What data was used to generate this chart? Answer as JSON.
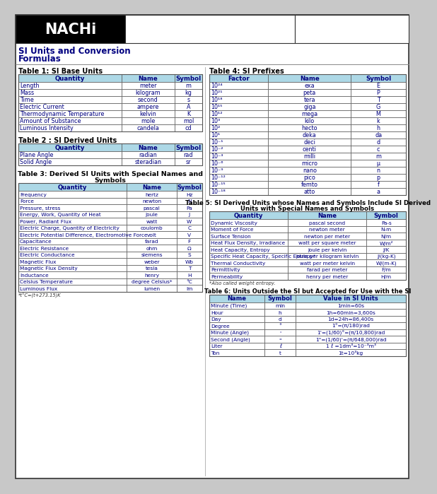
{
  "title_line1": "SI Units and Conversion",
  "title_line2": "Formulas",
  "nachi_text": "NACHi",
  "header_bg": "#000000",
  "table_header_bg": "#add8e6",
  "text_dark_blue": "#00008B",
  "text_black": "#000000",
  "border_color": "#555555",
  "page_border": "#888888",
  "table1_title": "Table 1: SI Base Units",
  "table1_headers": [
    "Quantity",
    "Name",
    "Symbol"
  ],
  "table1_rows": [
    [
      "Length",
      "meter",
      "m"
    ],
    [
      "Mass",
      "kilogram",
      "kg"
    ],
    [
      "Time",
      "second",
      "s"
    ],
    [
      "Electric Current",
      "ampere",
      "A"
    ],
    [
      "Thermodynamic Temperature",
      "kelvin",
      "K"
    ],
    [
      "Amount of Substance",
      "mole",
      "mol"
    ],
    [
      "Luminous Intensity",
      "candela",
      "cd"
    ]
  ],
  "table2_title": "Table 2 : SI Derived Units",
  "table2_headers": [
    "Quantity",
    "Name",
    "Symbol"
  ],
  "table2_rows": [
    [
      "Plane Angle",
      "radian",
      "rad"
    ],
    [
      "Solid Angle",
      "steradian",
      "sr"
    ]
  ],
  "table3_title_line1": "Table 3: Derived SI Units with Special Names and",
  "table3_title_line2": "Symbols",
  "table3_headers": [
    "Quantity",
    "Name",
    "Symbol"
  ],
  "table3_rows": [
    [
      "Frequency",
      "hertz",
      "Hz"
    ],
    [
      "Force",
      "newton",
      "N"
    ],
    [
      "Pressure, stress",
      "pascal",
      "Pa"
    ],
    [
      "Energy, Work, Quantity of Heat",
      "joule",
      "J"
    ],
    [
      "Power, Radiant Flux",
      "watt",
      "W"
    ],
    [
      "Electric Charge, Quantity of Electricity",
      "coulomb",
      "C"
    ],
    [
      "Electric Potential Difference, Electromotive Force",
      "volt",
      "V"
    ],
    [
      "Capacitance",
      "farad",
      "F"
    ],
    [
      "Electric Resistance",
      "ohm",
      "Ω"
    ],
    [
      "Electric Conductance",
      "siemens",
      "S"
    ],
    [
      "Magnetic Flux",
      "weber",
      "Wb"
    ],
    [
      "Magnetic Flux Density",
      "tesla",
      "T"
    ],
    [
      "Inductance",
      "henry",
      "H"
    ],
    [
      "Celsius Temperature",
      "degree Celsius*",
      "°C"
    ],
    [
      "Luminous Flux",
      "lumen",
      "lm"
    ]
  ],
  "table3_footnote": "*t°C=(t+273.15)K",
  "table4_title": "Table 4: SI Prefixes",
  "table4_headers": [
    "Factor",
    "Name",
    "Symbol"
  ],
  "table4_rows": [
    [
      "10²⁴",
      "exa",
      "E"
    ],
    [
      "10²¹",
      "peta",
      "P"
    ],
    [
      "10¹⁸",
      "tera",
      "T"
    ],
    [
      "10¹⁵",
      "giga",
      "G"
    ],
    [
      "10¹²",
      "mega",
      "M"
    ],
    [
      "10³",
      "kilo",
      "k"
    ],
    [
      "10²",
      "hecto",
      "h"
    ],
    [
      "10¹",
      "deka",
      "da"
    ],
    [
      "10⁻¹",
      "deci",
      "d"
    ],
    [
      "10⁻²",
      "centi",
      "c"
    ],
    [
      "10⁻³",
      "milli",
      "m"
    ],
    [
      "10⁻⁶",
      "micro",
      "μ"
    ],
    [
      "10⁻⁹",
      "nano",
      "n"
    ],
    [
      "10⁻¹²",
      "pico",
      "p"
    ],
    [
      "10⁻¹⁵",
      "femto",
      "f"
    ],
    [
      "10⁻¹⁸",
      "atto",
      "a"
    ]
  ],
  "table5_title_line1": "Table 5: SI Derived Units whose Names and Symbols Include SI Derived",
  "table5_title_line2": "Units with Special Names and Symbols",
  "table5_headers": [
    "Quantity",
    "Name",
    "Symbol"
  ],
  "table5_rows": [
    [
      "Dynamic Viscosity",
      "pascal second",
      "Pa-s"
    ],
    [
      "Moment of Force",
      "newton meter",
      "N-m"
    ],
    [
      "Surface Tension",
      "newton per meter",
      "N/m"
    ],
    [
      "Heat Flux Density, Irradiance",
      "watt per square meter",
      "W/m²"
    ],
    [
      "Heat Capacity, Entropy",
      "joule per kelvin",
      "J/K"
    ],
    [
      "Specific Heat Capacity, Specific Entropy*",
      "joule per kilogram kelvin",
      "J/(kg-K)"
    ],
    [
      "Thermal Conductivity",
      "watt per meter kelvin",
      "W/(m-K)"
    ],
    [
      "Permittivity",
      "farad per meter",
      "F/m"
    ],
    [
      "Permeability",
      "henry per meter",
      "H/m"
    ]
  ],
  "table5_footnote": "*Also called weight entropy.",
  "table6_title": "Table 6: Units Outside the SI but Accepted for Use with the SI",
  "table6_headers": [
    "Name",
    "Symbol",
    "Value in SI Units"
  ],
  "table6_rows": [
    [
      "Minute (Time)",
      "min",
      "1min=60s"
    ],
    [
      "Hour",
      "h",
      "1h=60min=3,600s"
    ],
    [
      "Day",
      "d",
      "1d=24h=86,400s"
    ],
    [
      "Degree",
      "°",
      "1°=(π/180)rad"
    ],
    [
      "Minute (Angle)",
      "'",
      "1'=(1/60)°=(π/10,800)rad"
    ],
    [
      "Second (Angle)",
      "\"",
      "1\"=(1/60)'=(π/648,000)rad"
    ],
    [
      "Liter",
      "ℓ",
      "1 ℓ =1dm³=10⁻³m³"
    ],
    [
      "Ton",
      "t",
      "1t=10³kg"
    ]
  ]
}
